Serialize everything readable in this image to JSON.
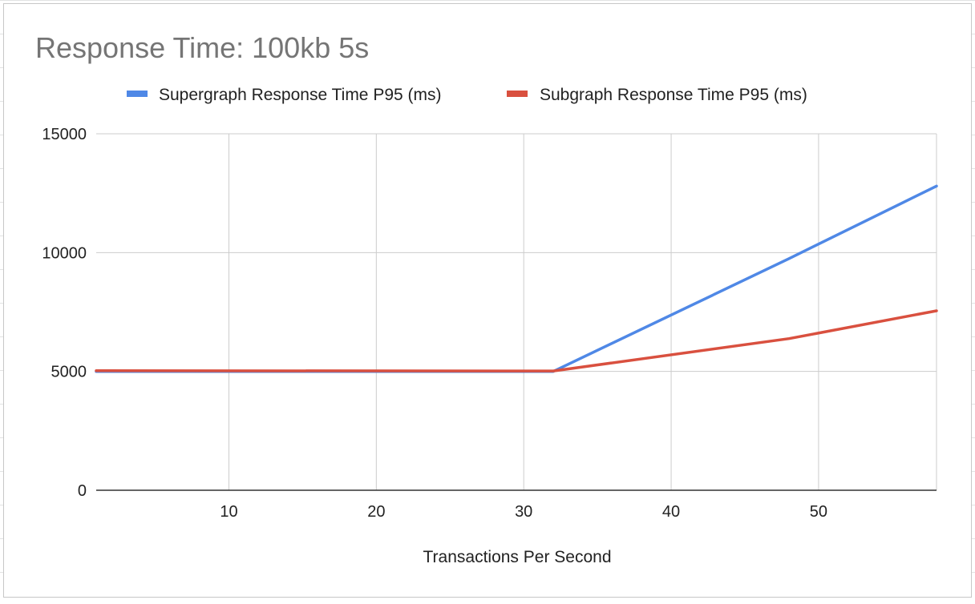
{
  "chart_data": {
    "type": "line",
    "title": "Response Time: 100kb 5s",
    "xlabel": "Transactions Per Second",
    "ylabel": "",
    "xlim": [
      1,
      58
    ],
    "ylim": [
      0,
      15000
    ],
    "x_ticks": [
      10,
      20,
      30,
      40,
      50
    ],
    "y_ticks": [
      0,
      5000,
      10000,
      15000
    ],
    "grid": true,
    "legend_position": "top",
    "series": [
      {
        "name": "Supergraph Response Time P95 (ms)",
        "color": "#4f88e6",
        "x": [
          1,
          32,
          48,
          58
        ],
        "y": [
          5000,
          5000,
          9750,
          12800
        ]
      },
      {
        "name": "Subgraph Response Time P95 (ms)",
        "color": "#d9503f",
        "x": [
          1,
          32,
          48,
          58
        ],
        "y": [
          5030,
          5020,
          6380,
          7550
        ]
      }
    ]
  }
}
